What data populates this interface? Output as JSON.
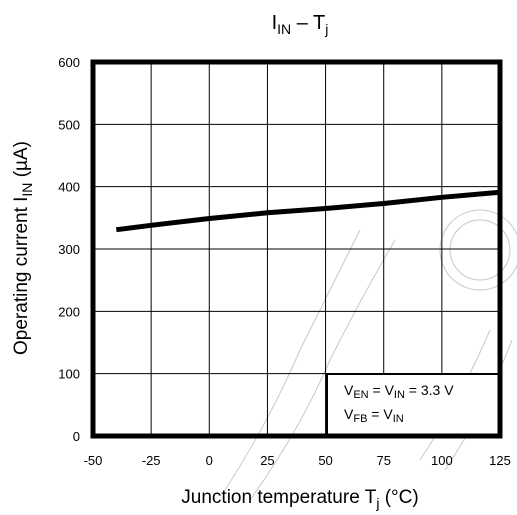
{
  "chart_data": {
    "type": "line",
    "title": {
      "main": "I",
      "sub": "IN",
      "dash": " – T",
      "sub2": "j"
    },
    "ylabel": {
      "text": "Operating current   I",
      "sub": "IN",
      "unit": "   (µA)"
    },
    "xlabel": {
      "text": "Junction temperature   T",
      "sub": "j",
      "unit": "   (°C)"
    },
    "xlim": [
      -50,
      125
    ],
    "ylim": [
      0,
      600
    ],
    "x_ticks": [
      -50,
      -25,
      0,
      25,
      50,
      75,
      100,
      125
    ],
    "y_ticks": [
      0,
      100,
      200,
      300,
      400,
      500,
      600
    ],
    "grid": true,
    "series": [
      {
        "x": [
          -40,
          -25,
          0,
          25,
          50,
          75,
          100,
          125
        ],
        "y": [
          331,
          338,
          349,
          358,
          365,
          373,
          383,
          391
        ]
      }
    ],
    "annotation": {
      "line1": {
        "a": "V",
        "a_sub": "EN",
        "b": " = V",
        "b_sub": "IN",
        "c": " = 3.3 V"
      },
      "line2": {
        "a": "V",
        "a_sub": "FB",
        "b": " = V",
        "b_sub": "IN"
      }
    },
    "colors": {
      "line": "#000000",
      "grid": "#000000",
      "frame": "#000000"
    }
  }
}
